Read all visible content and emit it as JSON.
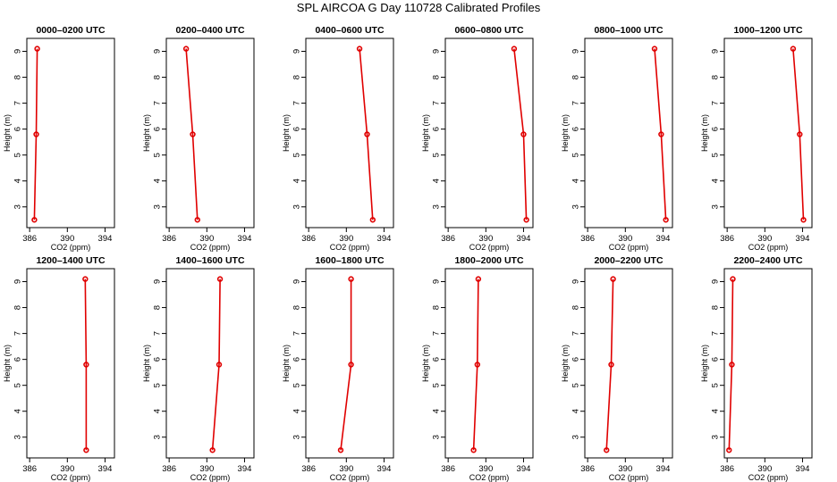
{
  "figure": {
    "title": "SPL AIRCOA G  Day 110728  Calibrated Profiles"
  },
  "chart_data": [
    {
      "type": "line",
      "title": "0000–0200 UTC",
      "xlabel": "CO2 (ppm)",
      "ylabel": "Height (m)",
      "xlim": [
        385.7,
        395
      ],
      "ylim": [
        2.2,
        9.5
      ],
      "xticks": [
        386,
        390,
        394
      ],
      "yticks": [
        3,
        4,
        5,
        6,
        7,
        8,
        9
      ],
      "series": [
        {
          "x": [
            386.8,
            386.7,
            386.5
          ],
          "y": [
            9.1,
            5.8,
            2.5
          ]
        }
      ]
    },
    {
      "type": "line",
      "title": "0200–0400 UTC",
      "xlabel": "CO2 (ppm)",
      "ylabel": "Height (m)",
      "xlim": [
        385.7,
        395
      ],
      "ylim": [
        2.2,
        9.5
      ],
      "xticks": [
        386,
        390,
        394
      ],
      "yticks": [
        3,
        4,
        5,
        6,
        7,
        8,
        9
      ],
      "series": [
        {
          "x": [
            387.8,
            388.5,
            389.0
          ],
          "y": [
            9.1,
            5.8,
            2.5
          ]
        }
      ]
    },
    {
      "type": "line",
      "title": "0400–0600 UTC",
      "xlabel": "CO2 (ppm)",
      "ylabel": "Height (m)",
      "xlim": [
        385.7,
        395
      ],
      "ylim": [
        2.2,
        9.5
      ],
      "xticks": [
        386,
        390,
        394
      ],
      "yticks": [
        3,
        4,
        5,
        6,
        7,
        8,
        9
      ],
      "series": [
        {
          "x": [
            391.4,
            392.2,
            392.8
          ],
          "y": [
            9.1,
            5.8,
            2.5
          ]
        }
      ]
    },
    {
      "type": "line",
      "title": "0600–0800 UTC",
      "xlabel": "CO2 (ppm)",
      "ylabel": "Height (m)",
      "xlim": [
        385.7,
        395
      ],
      "ylim": [
        2.2,
        9.5
      ],
      "xticks": [
        386,
        390,
        394
      ],
      "yticks": [
        3,
        4,
        5,
        6,
        7,
        8,
        9
      ],
      "series": [
        {
          "x": [
            393.0,
            394.0,
            394.3
          ],
          "y": [
            9.1,
            5.8,
            2.5
          ]
        }
      ]
    },
    {
      "type": "line",
      "title": "0800–1000 UTC",
      "xlabel": "CO2 (ppm)",
      "ylabel": "Height (m)",
      "xlim": [
        385.7,
        395
      ],
      "ylim": [
        2.2,
        9.5
      ],
      "xticks": [
        386,
        390,
        394
      ],
      "yticks": [
        3,
        4,
        5,
        6,
        7,
        8,
        9
      ],
      "series": [
        {
          "x": [
            393.1,
            393.8,
            394.3
          ],
          "y": [
            9.1,
            5.8,
            2.5
          ]
        }
      ]
    },
    {
      "type": "line",
      "title": "1000–1200 UTC",
      "xlabel": "CO2 (ppm)",
      "ylabel": "Height (m)",
      "xlim": [
        385.7,
        395
      ],
      "ylim": [
        2.2,
        9.5
      ],
      "xticks": [
        386,
        390,
        394
      ],
      "yticks": [
        3,
        4,
        5,
        6,
        7,
        8,
        9
      ],
      "series": [
        {
          "x": [
            393.0,
            393.7,
            394.1
          ],
          "y": [
            9.1,
            5.8,
            2.5
          ]
        }
      ]
    },
    {
      "type": "line",
      "title": "1200–1400 UTC",
      "xlabel": "CO2 (ppm)",
      "ylabel": "Height (m)",
      "xlim": [
        385.7,
        395
      ],
      "ylim": [
        2.2,
        9.5
      ],
      "xticks": [
        386,
        390,
        394
      ],
      "yticks": [
        3,
        4,
        5,
        6,
        7,
        8,
        9
      ],
      "series": [
        {
          "x": [
            391.9,
            392.0,
            392.0
          ],
          "y": [
            9.1,
            5.8,
            2.5
          ]
        }
      ]
    },
    {
      "type": "line",
      "title": "1400–1600 UTC",
      "xlabel": "CO2 (ppm)",
      "ylabel": "Height (m)",
      "xlim": [
        385.7,
        395
      ],
      "ylim": [
        2.2,
        9.5
      ],
      "xticks": [
        386,
        390,
        394
      ],
      "yticks": [
        3,
        4,
        5,
        6,
        7,
        8,
        9
      ],
      "series": [
        {
          "x": [
            391.4,
            391.3,
            390.6
          ],
          "y": [
            9.1,
            5.8,
            2.5
          ]
        }
      ]
    },
    {
      "type": "line",
      "title": "1600–1800 UTC",
      "xlabel": "CO2 (ppm)",
      "ylabel": "Height (m)",
      "xlim": [
        385.7,
        395
      ],
      "ylim": [
        2.2,
        9.5
      ],
      "xticks": [
        386,
        390,
        394
      ],
      "yticks": [
        3,
        4,
        5,
        6,
        7,
        8,
        9
      ],
      "series": [
        {
          "x": [
            390.5,
            390.5,
            389.4
          ],
          "y": [
            9.1,
            5.8,
            2.5
          ]
        }
      ]
    },
    {
      "type": "line",
      "title": "1800–2000 UTC",
      "xlabel": "CO2 (ppm)",
      "ylabel": "Height (m)",
      "xlim": [
        385.7,
        395
      ],
      "ylim": [
        2.2,
        9.5
      ],
      "xticks": [
        386,
        390,
        394
      ],
      "yticks": [
        3,
        4,
        5,
        6,
        7,
        8,
        9
      ],
      "series": [
        {
          "x": [
            389.2,
            389.1,
            388.7
          ],
          "y": [
            9.1,
            5.8,
            2.5
          ]
        }
      ]
    },
    {
      "type": "line",
      "title": "2000–2200 UTC",
      "xlabel": "CO2 (ppm)",
      "ylabel": "Height (m)",
      "xlim": [
        385.7,
        395
      ],
      "ylim": [
        2.2,
        9.5
      ],
      "xticks": [
        386,
        390,
        394
      ],
      "yticks": [
        3,
        4,
        5,
        6,
        7,
        8,
        9
      ],
      "series": [
        {
          "x": [
            388.7,
            388.5,
            388.0
          ],
          "y": [
            9.1,
            5.8,
            2.5
          ]
        }
      ]
    },
    {
      "type": "line",
      "title": "2200–2400 UTC",
      "xlabel": "CO2 (ppm)",
      "ylabel": "Height (m)",
      "xlim": [
        385.7,
        395
      ],
      "ylim": [
        2.2,
        9.5
      ],
      "xticks": [
        386,
        390,
        394
      ],
      "yticks": [
        3,
        4,
        5,
        6,
        7,
        8,
        9
      ],
      "series": [
        {
          "x": [
            386.6,
            386.5,
            386.2
          ],
          "y": [
            9.1,
            5.8,
            2.5
          ]
        }
      ]
    }
  ],
  "colors": {
    "profile": "#e00000",
    "axes": "#000000"
  },
  "markers": "open-circle"
}
